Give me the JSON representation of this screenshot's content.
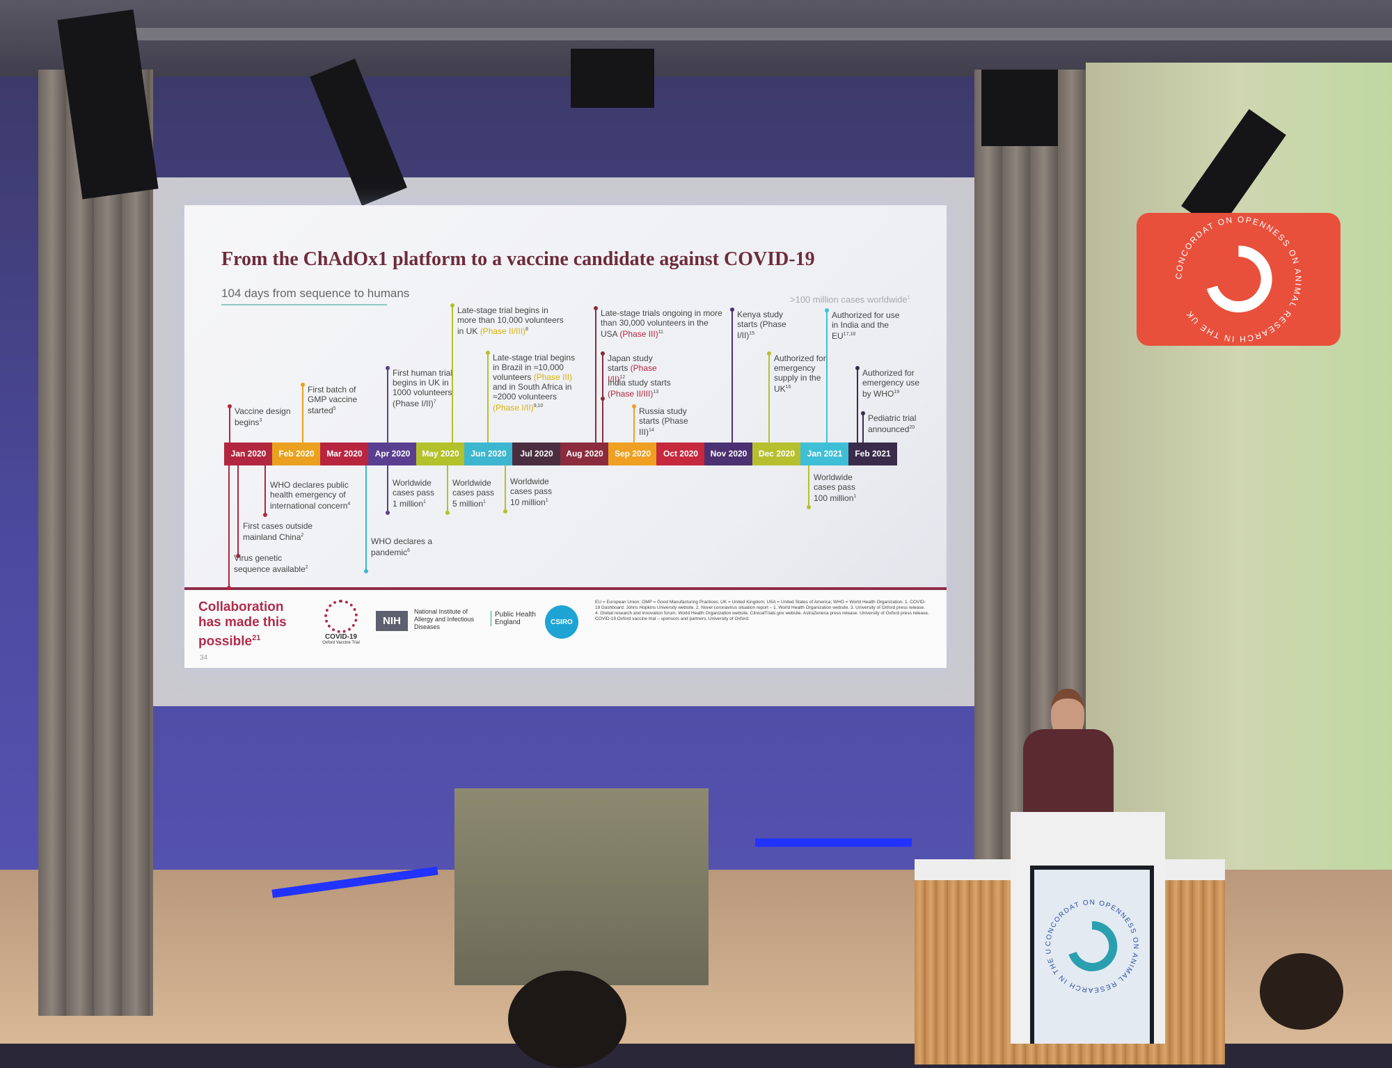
{
  "slide": {
    "title": "From the ChAdOx1 platform to a vaccine candidate against COVID-19",
    "subtitle": "104 days from sequence to humans",
    "cases_note": ">100 million cases worldwide",
    "cases_note_ref": "1",
    "months": [
      {
        "label": "Jan 2020",
        "color": "#b3263f"
      },
      {
        "label": "Feb 2020",
        "color": "#e9a11f"
      },
      {
        "label": "Mar 2020",
        "color": "#b8253f"
      },
      {
        "label": "Apr 2020",
        "color": "#5a3f90"
      },
      {
        "label": "May 2020",
        "color": "#b3c12a"
      },
      {
        "label": "Jun 2020",
        "color": "#3db6cf"
      },
      {
        "label": "Jul 2020",
        "color": "#4a2e40"
      },
      {
        "label": "Aug 2020",
        "color": "#8a2c3d"
      },
      {
        "label": "Sep 2020",
        "color": "#ef9f21"
      },
      {
        "label": "Oct 2020",
        "color": "#c6283d"
      },
      {
        "label": "Nov 2020",
        "color": "#4b3172"
      },
      {
        "label": "Dec 2020",
        "color": "#b6c02f"
      },
      {
        "label": "Jan 2021",
        "color": "#3fbfd6"
      },
      {
        "label": "Feb 2021",
        "color": "#3a2b4b"
      }
    ],
    "events_above": [
      {
        "parts": [
          {
            "text": "Vaccine design begins"
          }
        ],
        "ref": "3"
      },
      {
        "parts": [
          {
            "text": "First batch of GMP vaccine started"
          }
        ],
        "ref": "5"
      },
      {
        "parts": [
          {
            "text": "First human trial begins in UK in 1000 volunteers (Phase I/II)"
          }
        ],
        "ref": "7"
      },
      {
        "parts": [
          {
            "text": "Late-stage trial begins in more than 10,000 volunteers in UK "
          },
          {
            "text": "(Phase II/III)",
            "style": "phase"
          }
        ],
        "ref": "8"
      },
      {
        "parts": [
          {
            "text": "Late-stage trial begins in Brazil in ≈10,000 volunteers "
          },
          {
            "text": "(Phase III)",
            "style": "phase"
          },
          {
            "text": " and in South Africa in ≈2000 volunteers "
          },
          {
            "text": "(Phase I/II)",
            "style": "phase"
          }
        ],
        "ref": "9,10"
      },
      {
        "parts": [
          {
            "text": "Late-stage trials ongoing in more than 30,000 volunteers in the USA "
          },
          {
            "text": "(Phase III)",
            "style": "phase-red"
          }
        ],
        "ref": "11"
      },
      {
        "parts": [
          {
            "text": "Japan study starts "
          },
          {
            "text": "(Phase I/II)",
            "style": "phase-red"
          }
        ],
        "ref": "12"
      },
      {
        "parts": [
          {
            "text": "India study starts "
          },
          {
            "text": "(Phase II/III)",
            "style": "phase-red"
          }
        ],
        "ref": "13"
      },
      {
        "parts": [
          {
            "text": "Russia study starts (Phase III)"
          }
        ],
        "ref": "14"
      },
      {
        "parts": [
          {
            "text": "Kenya study starts (Phase I/II)"
          }
        ],
        "ref": "15"
      },
      {
        "parts": [
          {
            "text": "Authorized for emergency supply in the UK"
          }
        ],
        "ref": "16"
      },
      {
        "parts": [
          {
            "text": "Authorized for use in India and the EU"
          }
        ],
        "ref": "17,18"
      },
      {
        "parts": [
          {
            "text": "Authorized for emergency use by WHO"
          }
        ],
        "ref": "19"
      },
      {
        "parts": [
          {
            "text": "Pediatric trial announced"
          }
        ],
        "ref": "20"
      }
    ],
    "events_below": [
      {
        "parts": [
          {
            "text": "WHO declares public health emergency of international concern"
          }
        ],
        "ref": "4"
      },
      {
        "parts": [
          {
            "text": "First cases outside mainland China"
          }
        ],
        "ref": "2"
      },
      {
        "parts": [
          {
            "text": "Virus genetic sequence available"
          }
        ],
        "ref": "2"
      },
      {
        "parts": [
          {
            "text": "WHO declares a pandemic"
          }
        ],
        "ref": "6"
      },
      {
        "parts": [
          {
            "text": "Worldwide cases pass 1 million"
          }
        ],
        "ref": "1"
      },
      {
        "parts": [
          {
            "text": "Worldwide cases pass 5 million"
          }
        ],
        "ref": "1"
      },
      {
        "parts": [
          {
            "text": "Worldwide cases pass 10 million"
          }
        ],
        "ref": "1"
      },
      {
        "parts": [
          {
            "text": "Worldwide cases pass 100 million"
          }
        ],
        "ref": "1"
      }
    ],
    "footer": {
      "collaboration": "Collaboration has made this possible",
      "collaboration_ref": "21",
      "logo_covid": "COVID-19",
      "logo_covid_sub": "Oxford Vaccine Trial",
      "logo_nih": "NIH",
      "logo_nih_text": "National Institute of Allergy and Infectious Diseases",
      "logo_phe": "Public Health England",
      "logo_csiro": "CSIRO",
      "footnote": "EU = European Union; GMP = Good Manufacturing Practices; UK = United Kingdom; USA = United States of America; WHO = World Health Organization. 1. COVID-19 Dashboard. Johns Hopkins University website. 2. Novel coronavirus situation report – 1. World Health Organization website. 3. University of Oxford press release. 4. Global research and innovation forum. World Health Organization website. ClinicalTrials.gov website. AstraZeneca press release. University of Oxford press release. COVID-19 Oxford vaccine trial – sponsors and partners, University of Oxford.",
      "page": "34"
    }
  },
  "venue": {
    "logo_text": "CONCORDAT ON OPENNESS ON ANIMAL RESEARCH IN THE UK"
  }
}
